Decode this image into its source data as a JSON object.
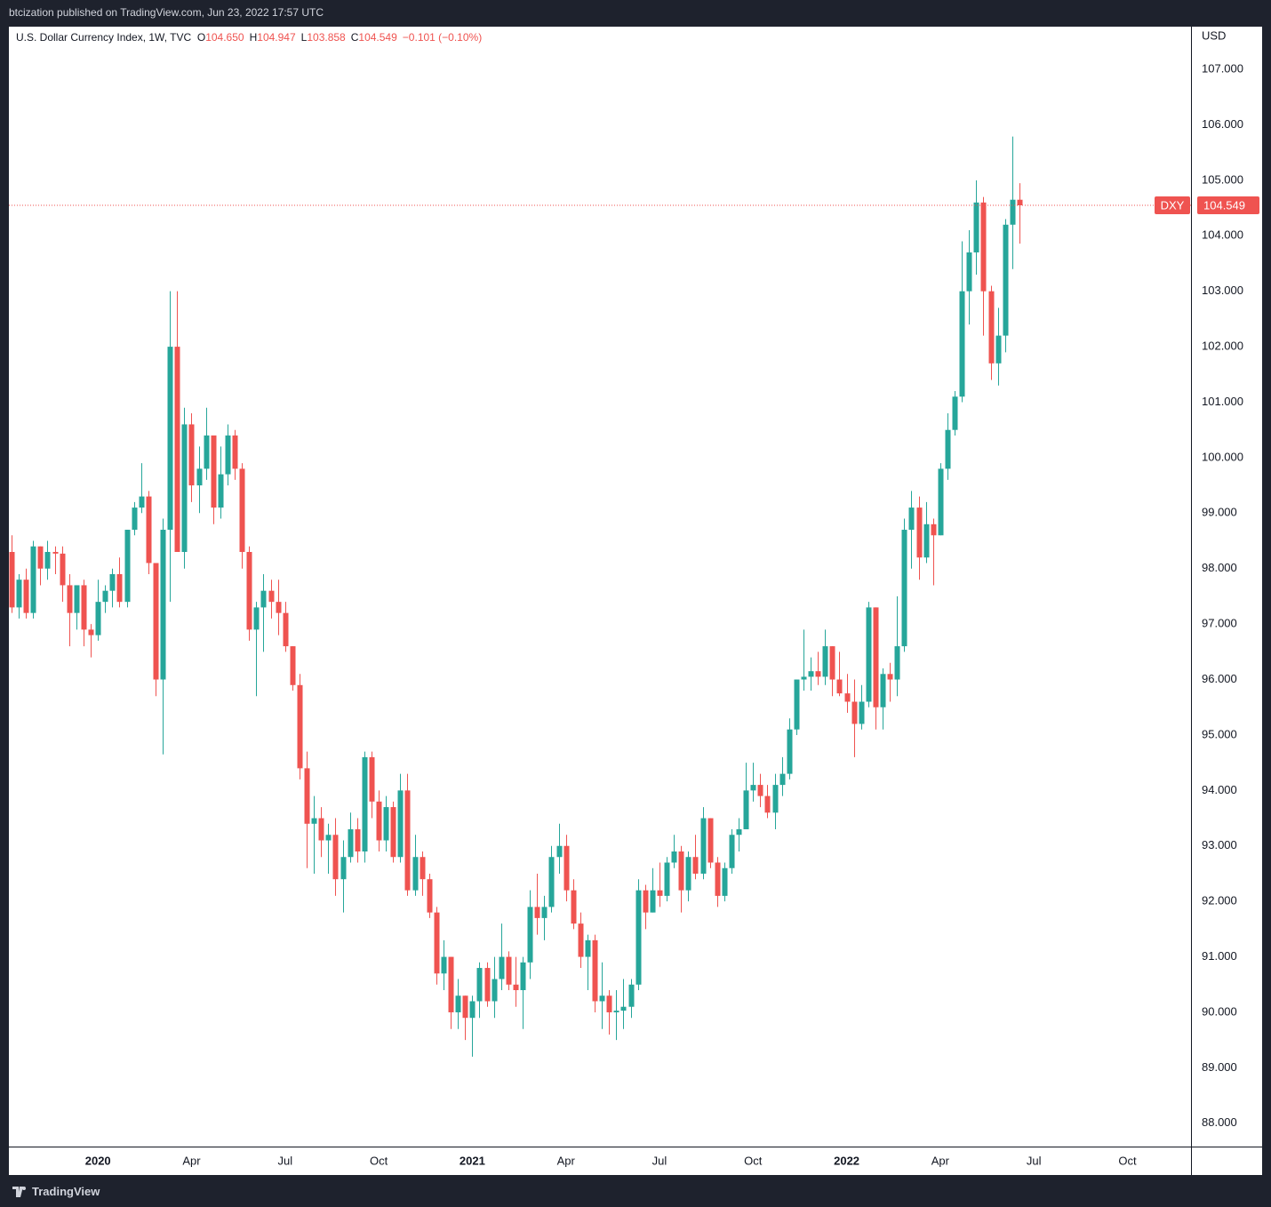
{
  "header": {
    "publisher": "btcization published on TradingView.com, Jun 23, 2022 17:57 UTC"
  },
  "footer": {
    "brand": "TradingView"
  },
  "chart_data": {
    "type": "candlestick",
    "title": "U.S. Dollar Currency Index, 1W, TVC",
    "ohlc_legend": [
      {
        "label": "O",
        "value": "104.650"
      },
      {
        "label": "H",
        "value": "104.947"
      },
      {
        "label": "L",
        "value": "103.858"
      },
      {
        "label": "C",
        "value": "104.549"
      }
    ],
    "change": "−0.101 (−0.10%)",
    "y_axis_label": "USD",
    "last_price_label": "104.549",
    "series": [
      {
        "name": "DXY",
        "up_color": "#26a69a",
        "down_color": "#ef5350",
        "open": [
          98.3,
          97.3,
          97.8,
          97.2,
          98.4,
          98.0,
          98.3,
          98.27,
          97.7,
          97.2,
          97.7,
          96.9,
          96.8,
          97.4,
          97.6,
          97.9,
          97.4,
          98.7,
          99.1,
          99.3,
          98.1,
          96.0,
          98.7,
          102.0,
          98.3,
          100.6,
          99.5,
          99.8,
          100.4,
          99.1,
          99.7,
          100.4,
          99.8,
          98.3,
          96.9,
          97.3,
          97.6,
          97.4,
          97.2,
          96.6,
          95.9,
          94.4,
          93.4,
          93.5,
          93.1,
          93.2,
          92.4,
          92.8,
          93.3,
          92.9,
          94.6,
          93.8,
          93.1,
          93.7,
          92.8,
          94.0,
          92.2,
          92.8,
          92.4,
          91.8,
          90.7,
          91.0,
          90.0,
          90.3,
          89.9,
          90.2,
          90.8,
          90.2,
          90.6,
          91.0,
          90.5,
          90.4,
          90.9,
          91.9,
          91.7,
          91.9,
          92.8,
          93.0,
          92.2,
          91.6,
          91.0,
          91.3,
          90.2,
          90.3,
          90.0,
          90.03,
          90.1,
          90.5,
          92.2,
          91.8,
          92.2,
          92.1,
          92.7,
          92.9,
          92.2,
          92.8,
          92.5,
          93.5,
          92.7,
          92.1,
          92.6,
          93.2,
          93.3,
          94.0,
          94.1,
          93.9,
          93.6,
          94.1,
          94.3,
          95.1,
          96.0,
          96.05,
          96.15,
          96.05,
          96.6,
          96.0,
          95.75,
          95.6,
          95.2,
          95.6,
          97.3,
          95.5,
          96.1,
          96.0,
          96.6,
          98.7,
          99.1,
          98.2,
          98.8,
          98.6,
          99.8,
          100.5,
          101.1,
          103.0,
          103.7,
          104.6,
          103.0,
          101.7,
          102.2,
          104.2,
          104.65
        ],
        "high": [
          98.6,
          97.9,
          98.0,
          98.5,
          98.4,
          98.5,
          98.4,
          98.4,
          97.9,
          97.7,
          97.8,
          97.0,
          97.8,
          97.7,
          98.0,
          98.2,
          98.7,
          99.2,
          99.9,
          99.4,
          98.1,
          98.9,
          103.0,
          103.0,
          100.9,
          100.8,
          100.2,
          100.9,
          100.4,
          100.2,
          100.6,
          100.5,
          99.9,
          98.4,
          97.4,
          97.9,
          97.8,
          97.8,
          97.4,
          96.6,
          96.1,
          94.7,
          93.9,
          93.7,
          93.4,
          93.5,
          93.1,
          93.6,
          93.5,
          94.7,
          94.7,
          94.0,
          93.9,
          93.8,
          94.3,
          94.3,
          93.2,
          92.9,
          92.5,
          91.9,
          91.3,
          91.0,
          90.6,
          90.3,
          90.3,
          90.9,
          90.9,
          91.0,
          91.6,
          91.1,
          91.0,
          91.0,
          92.2,
          92.5,
          92.1,
          93.0,
          93.4,
          93.2,
          92.4,
          91.8,
          91.4,
          91.4,
          90.9,
          90.4,
          90.4,
          90.6,
          90.6,
          92.4,
          92.3,
          92.6,
          92.7,
          92.8,
          93.2,
          93.0,
          92.9,
          93.2,
          93.7,
          93.5,
          92.8,
          92.7,
          93.3,
          93.5,
          94.5,
          94.5,
          94.3,
          94.1,
          94.3,
          94.6,
          95.3,
          96.0,
          96.9,
          96.4,
          96.5,
          96.9,
          96.6,
          96.5,
          96.1,
          96.0,
          95.9,
          97.4,
          97.3,
          96.2,
          96.3,
          97.5,
          98.9,
          99.4,
          99.3,
          99.2,
          98.9,
          99.9,
          100.8,
          101.2,
          103.9,
          104.1,
          105.0,
          104.7,
          103.1,
          102.7,
          104.3,
          105.79,
          104.947
        ],
        "low": [
          97.2,
          97.1,
          97.1,
          97.1,
          97.7,
          97.8,
          97.9,
          97.4,
          96.6,
          96.9,
          96.6,
          96.4,
          96.7,
          97.2,
          97.3,
          97.3,
          97.3,
          98.6,
          99.0,
          97.9,
          95.7,
          94.65,
          97.4,
          98.3,
          98.0,
          99.2,
          99.0,
          99.6,
          98.8,
          98.9,
          99.5,
          99.6,
          98.0,
          96.7,
          95.7,
          96.5,
          97.1,
          96.8,
          96.5,
          95.8,
          94.2,
          92.6,
          92.5,
          92.8,
          92.5,
          92.1,
          91.8,
          92.7,
          92.7,
          92.7,
          93.5,
          92.9,
          92.9,
          92.7,
          92.7,
          92.1,
          92.1,
          92.1,
          91.7,
          90.5,
          90.4,
          89.7,
          89.7,
          89.5,
          89.2,
          89.9,
          90.1,
          89.9,
          90.4,
          90.4,
          90.1,
          89.7,
          90.6,
          91.4,
          91.3,
          91.8,
          92.5,
          92.0,
          91.5,
          90.8,
          90.4,
          90.0,
          89.7,
          89.6,
          89.5,
          89.7,
          89.9,
          90.4,
          91.5,
          91.8,
          91.9,
          92.0,
          92.6,
          91.8,
          92.0,
          92.4,
          92.4,
          92.6,
          91.9,
          92.0,
          92.5,
          92.9,
          93.3,
          93.8,
          93.7,
          93.5,
          93.3,
          93.9,
          94.2,
          95.0,
          95.8,
          95.8,
          95.9,
          95.9,
          95.7,
          95.7,
          95.4,
          94.6,
          95.1,
          95.5,
          95.1,
          95.1,
          95.6,
          95.7,
          96.5,
          98.0,
          97.8,
          98.1,
          97.7,
          98.6,
          99.6,
          100.4,
          101.0,
          102.4,
          103.3,
          102.2,
          101.4,
          101.3,
          101.9,
          103.4,
          103.858
        ],
        "close": [
          97.3,
          97.8,
          97.2,
          98.4,
          98.0,
          98.3,
          98.27,
          97.7,
          97.2,
          97.7,
          96.9,
          96.8,
          97.4,
          97.6,
          97.9,
          97.4,
          98.7,
          99.1,
          99.3,
          98.1,
          96.0,
          98.7,
          102.0,
          98.3,
          100.6,
          99.5,
          99.8,
          100.4,
          99.1,
          99.7,
          100.4,
          99.8,
          98.3,
          96.9,
          97.3,
          97.6,
          97.4,
          97.2,
          96.6,
          95.9,
          94.4,
          93.4,
          93.5,
          93.1,
          93.2,
          92.4,
          92.8,
          93.3,
          92.9,
          94.6,
          93.8,
          93.1,
          93.7,
          92.8,
          94.0,
          92.2,
          92.8,
          92.4,
          91.8,
          90.7,
          91.0,
          90.0,
          90.3,
          89.9,
          90.2,
          90.8,
          90.2,
          90.6,
          91.0,
          90.5,
          90.4,
          90.9,
          91.9,
          91.7,
          91.9,
          92.8,
          93.0,
          92.2,
          91.6,
          91.0,
          91.3,
          90.2,
          90.3,
          90.0,
          90.03,
          90.1,
          90.5,
          92.2,
          91.8,
          92.2,
          92.1,
          92.7,
          92.9,
          92.2,
          92.8,
          92.5,
          93.5,
          92.7,
          92.1,
          92.6,
          93.2,
          93.3,
          94.0,
          94.1,
          93.9,
          93.6,
          94.1,
          94.3,
          95.1,
          96.0,
          96.05,
          96.15,
          96.05,
          96.6,
          96.0,
          95.75,
          95.6,
          95.2,
          95.6,
          97.3,
          95.5,
          96.1,
          96.0,
          96.6,
          98.7,
          99.1,
          98.2,
          98.8,
          98.6,
          99.8,
          100.5,
          101.1,
          103.0,
          103.7,
          104.6,
          103.0,
          101.7,
          102.2,
          104.2,
          104.65,
          104.549
        ]
      }
    ],
    "xlim": [
      -0.37,
      163.83
    ],
    "xticks": [
      {
        "value": 12,
        "label": "2020"
      },
      {
        "value": 25,
        "label": "Apr"
      },
      {
        "value": 38,
        "label": "Jul"
      },
      {
        "value": 51,
        "label": "Oct"
      },
      {
        "value": 64,
        "label": "2021"
      },
      {
        "value": 77,
        "label": "Apr"
      },
      {
        "value": 90,
        "label": "Jul"
      },
      {
        "value": 103,
        "label": "Oct"
      },
      {
        "value": 116,
        "label": "2022"
      },
      {
        "value": 129,
        "label": "Apr"
      },
      {
        "value": 142,
        "label": "Jul"
      },
      {
        "value": 155,
        "label": "Oct"
      }
    ],
    "ylim": [
      87.58,
      107.77
    ],
    "yticks": [
      {
        "value": 88,
        "label": "88.000"
      },
      {
        "value": 89,
        "label": "89.000"
      },
      {
        "value": 90,
        "label": "90.000"
      },
      {
        "value": 91,
        "label": "91.000"
      },
      {
        "value": 92,
        "label": "92.000"
      },
      {
        "value": 93,
        "label": "93.000"
      },
      {
        "value": 94,
        "label": "94.000"
      },
      {
        "value": 95,
        "label": "95.000"
      },
      {
        "value": 96,
        "label": "96.000"
      },
      {
        "value": 97,
        "label": "97.000"
      },
      {
        "value": 98,
        "label": "98.000"
      },
      {
        "value": 99,
        "label": "99.000"
      },
      {
        "value": 100,
        "label": "100.000"
      },
      {
        "value": 101,
        "label": "101.000"
      },
      {
        "value": 102,
        "label": "102.000"
      },
      {
        "value": 103,
        "label": "103.000"
      },
      {
        "value": 104,
        "label": "104.000"
      },
      {
        "value": 105,
        "label": "105.000"
      },
      {
        "value": 106,
        "label": "106.000"
      },
      {
        "value": 107,
        "label": "107.000"
      }
    ],
    "grid": false
  }
}
